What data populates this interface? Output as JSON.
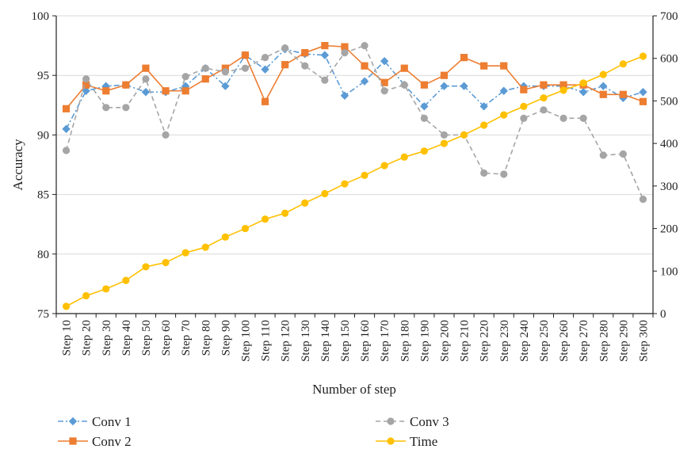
{
  "chart_data": {
    "type": "line",
    "xlabel": "Number of step",
    "ylabel": "Accuracy",
    "y2label": "",
    "ylim": [
      75,
      100
    ],
    "yticks": [
      75,
      80,
      85,
      90,
      95,
      100
    ],
    "y2lim": [
      0,
      700
    ],
    "y2ticks": [
      0,
      100,
      200,
      300,
      400,
      500,
      600,
      700
    ],
    "grid": true,
    "legend_position": "bottom",
    "categories": [
      "Step 10",
      "Step 20",
      "Step 30",
      "Step 40",
      "Step 50",
      "Step 60",
      "Step 70",
      "Step 80",
      "Step 90",
      "Step 100",
      "Step 110",
      "Step 120",
      "Step 130",
      "Step 140",
      "Step 150",
      "Step 160",
      "Step 170",
      "Step 180",
      "Step 190",
      "Step 200",
      "Step 210",
      "Step 220",
      "Step 230",
      "Step 240",
      "Step 250",
      "Step 260",
      "Step 270",
      "Step 280",
      "Step 290",
      "Step 300"
    ],
    "series": [
      {
        "name": "Conv 1",
        "axis": "left",
        "color": "#5b9bd5",
        "dash": "dash-dot",
        "marker": "diamond",
        "values": [
          90.5,
          93.7,
          94.1,
          94.2,
          93.6,
          93.6,
          94.1,
          95.6,
          94.1,
          96.7,
          95.5,
          97.2,
          96.8,
          96.7,
          93.3,
          94.5,
          96.2,
          94.2,
          92.4,
          94.1,
          94.1,
          92.4,
          93.7,
          94.1,
          94.1,
          94.1,
          93.6,
          94.1,
          93.1,
          93.6
        ]
      },
      {
        "name": "Conv 2",
        "axis": "left",
        "color": "#ed7d31",
        "dash": "solid",
        "marker": "square",
        "values": [
          92.2,
          94.2,
          93.7,
          94.2,
          95.6,
          93.7,
          93.7,
          94.7,
          95.6,
          96.7,
          92.8,
          95.9,
          96.9,
          97.5,
          97.4,
          95.8,
          94.4,
          95.6,
          94.2,
          95.0,
          96.5,
          95.8,
          95.8,
          93.8,
          94.2,
          94.2,
          94.2,
          93.4,
          93.4,
          92.8
        ]
      },
      {
        "name": "Conv 3",
        "axis": "left",
        "color": "#a5a5a5",
        "dash": "dashed",
        "marker": "circle",
        "values": [
          88.7,
          94.7,
          92.3,
          92.3,
          94.7,
          90.0,
          94.9,
          95.6,
          95.3,
          95.6,
          96.5,
          97.3,
          95.8,
          94.6,
          96.9,
          97.5,
          93.7,
          94.2,
          91.4,
          90.0,
          90.0,
          86.8,
          86.7,
          91.4,
          92.1,
          91.4,
          91.4,
          88.3,
          88.4,
          84.6
        ]
      },
      {
        "name": "Time",
        "axis": "right",
        "color": "#ffc000",
        "dash": "solid",
        "marker": "circle",
        "values": [
          17,
          42,
          58,
          78,
          110,
          120,
          143,
          156,
          180,
          200,
          222,
          236,
          260,
          282,
          305,
          325,
          348,
          368,
          382,
          400,
          420,
          443,
          467,
          487,
          507,
          525,
          542,
          562,
          587,
          605
        ]
      }
    ]
  }
}
